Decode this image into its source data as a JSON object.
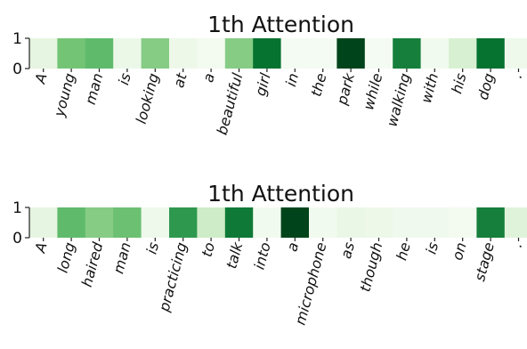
{
  "chart_data": [
    {
      "type": "heatmap",
      "title": "1th Attention",
      "yticks": [
        "1",
        "0"
      ],
      "colormap": "Greens",
      "categories": [
        "A",
        "young",
        "man",
        "is",
        "looking",
        "at",
        "a",
        "beautiful",
        "girl",
        "in",
        "the",
        "park",
        "while",
        "walking",
        "with",
        "his",
        "dog",
        "."
      ],
      "values": [
        0.12,
        0.5,
        0.55,
        0.08,
        0.45,
        0.07,
        0.03,
        0.45,
        0.85,
        0.02,
        0.02,
        1.0,
        0.02,
        0.8,
        0.04,
        0.18,
        0.85,
        0.06
      ]
    },
    {
      "type": "heatmap",
      "title": "1th Attention",
      "yticks": [
        "1",
        "0"
      ],
      "colormap": "Greens",
      "categories": [
        "A",
        "long",
        "haired",
        "man",
        "is",
        "practicing",
        "to",
        "talk",
        "into",
        "a",
        "microphone",
        "as",
        "though",
        "he",
        "is",
        "on",
        "stage",
        "."
      ],
      "values": [
        0.12,
        0.55,
        0.45,
        0.52,
        0.06,
        0.7,
        0.22,
        0.82,
        0.04,
        1.0,
        0.04,
        0.09,
        0.07,
        0.05,
        0.05,
        0.03,
        0.8,
        0.15
      ]
    }
  ]
}
